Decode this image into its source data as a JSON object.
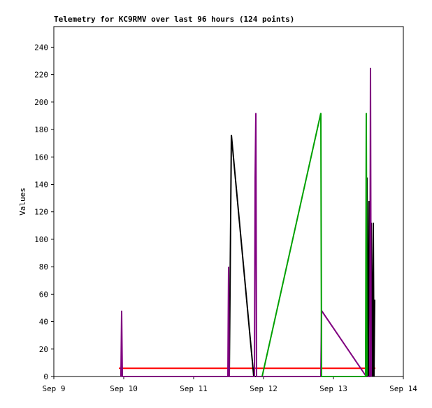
{
  "chart_data": {
    "type": "line",
    "title": "Telemetry for KC9RMV over last 96 hours (124 points)",
    "y_label": "Values",
    "xlim": [
      9,
      14
    ],
    "xticks": [
      {
        "value": 9,
        "label": "Sep 9"
      },
      {
        "value": 10,
        "label": "Sep 10"
      },
      {
        "value": 11,
        "label": "Sep 11"
      },
      {
        "value": 12,
        "label": "Sep 12"
      },
      {
        "value": 13,
        "label": "Sep 13"
      },
      {
        "value": 14,
        "label": "Sep 14"
      }
    ],
    "ylim": [
      0,
      255
    ],
    "yticks": [
      0,
      20,
      40,
      60,
      80,
      100,
      120,
      140,
      160,
      180,
      200,
      220,
      240
    ],
    "series": [
      {
        "color": "#ff0000",
        "x": [
          9.93,
          13.6
        ],
        "values": [
          6,
          6
        ]
      },
      {
        "color": "#000000",
        "x": [
          9.96,
          9.97,
          9.98,
          11.51,
          11.54,
          11.86,
          13.46,
          13.47,
          13.48,
          13.5,
          13.51,
          13.53,
          13.54,
          13.56,
          13.57,
          13.58,
          13.59
        ],
        "values": [
          0,
          16,
          0,
          0,
          176,
          0,
          0,
          72,
          145,
          0,
          128,
          0,
          112,
          0,
          112,
          0,
          56
        ]
      },
      {
        "color": "#800080",
        "x": [
          9.96,
          9.97,
          9.98,
          11.49,
          11.5,
          11.51,
          11.52,
          11.87,
          11.88,
          11.89,
          11.9,
          11.91,
          12.82,
          12.83,
          13.47,
          13.52,
          13.53,
          13.54
        ],
        "values": [
          0,
          48,
          0,
          0,
          80,
          0,
          0,
          0,
          145,
          192,
          0,
          0,
          0,
          48,
          0,
          0,
          225,
          0
        ]
      },
      {
        "color": "#00a000",
        "x": [
          11.98,
          12.82,
          12.83,
          13.46,
          13.47,
          13.48
        ],
        "values": [
          0,
          192,
          0,
          0,
          192,
          0
        ]
      }
    ]
  }
}
